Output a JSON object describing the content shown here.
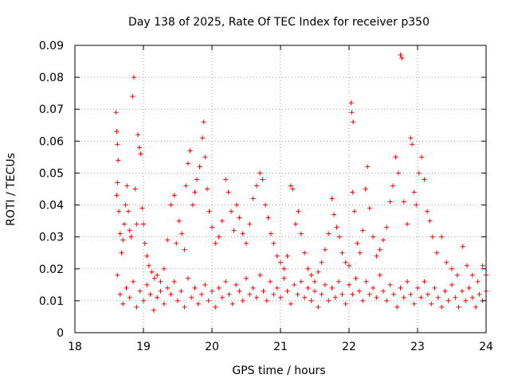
{
  "chart_data": {
    "type": "scatter",
    "title": "Day 138 of 2025, Rate Of TEC Index for receiver p350",
    "xlabel": "GPS time / hours",
    "ylabel": "ROTI / TECUs",
    "xlim": [
      18,
      24
    ],
    "ylim": [
      0,
      0.09
    ],
    "x_ticks": [
      18,
      19,
      20,
      21,
      22,
      23,
      24
    ],
    "x_tick_labels": [
      "18",
      "19",
      "20",
      "21",
      "22",
      "23",
      "24"
    ],
    "y_ticks": [
      0,
      0.01,
      0.02,
      0.03,
      0.04,
      0.05,
      0.06,
      0.07,
      0.08,
      0.09
    ],
    "y_tick_labels": [
      "0",
      "0.01",
      "0.02",
      "0.03",
      "0.04",
      "0.05",
      "0.06",
      "0.07",
      "0.08",
      "0.09"
    ],
    "grid": true,
    "marker": "+",
    "color": "#ff0000",
    "series": [
      {
        "name": "p350",
        "points": [
          [
            18.6,
            0.069
          ],
          [
            18.61,
            0.063
          ],
          [
            18.62,
            0.059
          ],
          [
            18.63,
            0.054
          ],
          [
            18.62,
            0.047
          ],
          [
            18.61,
            0.043
          ],
          [
            18.64,
            0.038
          ],
          [
            18.66,
            0.031
          ],
          [
            18.68,
            0.025
          ],
          [
            18.7,
            0.029
          ],
          [
            18.72,
            0.034
          ],
          [
            18.74,
            0.04
          ],
          [
            18.76,
            0.046
          ],
          [
            18.78,
            0.038
          ],
          [
            18.8,
            0.032
          ],
          [
            18.82,
            0.03
          ],
          [
            18.84,
            0.074
          ],
          [
            18.86,
            0.08
          ],
          [
            18.88,
            0.045
          ],
          [
            18.9,
            0.034
          ],
          [
            18.92,
            0.062
          ],
          [
            18.94,
            0.058
          ],
          [
            18.96,
            0.056
          ],
          [
            18.98,
            0.039
          ],
          [
            19.0,
            0.034
          ],
          [
            19.02,
            0.028
          ],
          [
            19.05,
            0.024
          ],
          [
            19.08,
            0.021
          ],
          [
            19.12,
            0.019
          ],
          [
            19.16,
            0.017
          ],
          [
            19.2,
            0.018
          ],
          [
            19.25,
            0.016
          ],
          [
            19.3,
            0.02
          ],
          [
            19.35,
            0.029
          ],
          [
            19.4,
            0.04
          ],
          [
            19.45,
            0.043
          ],
          [
            19.48,
            0.028
          ],
          [
            19.52,
            0.035
          ],
          [
            19.56,
            0.031
          ],
          [
            19.6,
            0.026
          ],
          [
            19.62,
            0.046
          ],
          [
            19.65,
            0.053
          ],
          [
            19.68,
            0.057
          ],
          [
            19.72,
            0.04
          ],
          [
            19.75,
            0.044
          ],
          [
            19.78,
            0.048
          ],
          [
            19.82,
            0.052
          ],
          [
            19.86,
            0.061
          ],
          [
            19.88,
            0.066
          ],
          [
            19.9,
            0.055
          ],
          [
            19.93,
            0.045
          ],
          [
            19.96,
            0.038
          ],
          [
            20.0,
            0.033
          ],
          [
            20.05,
            0.028
          ],
          [
            20.1,
            0.03
          ],
          [
            20.15,
            0.035
          ],
          [
            20.2,
            0.048
          ],
          [
            20.24,
            0.044
          ],
          [
            20.28,
            0.038
          ],
          [
            20.32,
            0.032
          ],
          [
            20.36,
            0.04
          ],
          [
            20.4,
            0.036
          ],
          [
            20.45,
            0.031
          ],
          [
            20.5,
            0.028
          ],
          [
            20.55,
            0.034
          ],
          [
            20.6,
            0.042
          ],
          [
            20.65,
            0.046
          ],
          [
            20.7,
            0.05
          ],
          [
            20.74,
            0.048
          ],
          [
            20.78,
            0.04
          ],
          [
            20.82,
            0.036
          ],
          [
            20.86,
            0.031
          ],
          [
            20.9,
            0.028
          ],
          [
            20.95,
            0.024
          ],
          [
            21.0,
            0.022
          ],
          [
            21.05,
            0.02
          ],
          [
            21.1,
            0.024
          ],
          [
            21.15,
            0.046
          ],
          [
            21.18,
            0.045
          ],
          [
            21.22,
            0.034
          ],
          [
            21.26,
            0.038
          ],
          [
            21.3,
            0.031
          ],
          [
            21.35,
            0.025
          ],
          [
            21.4,
            0.02
          ],
          [
            21.45,
            0.018
          ],
          [
            21.5,
            0.016
          ],
          [
            21.55,
            0.019
          ],
          [
            21.6,
            0.022
          ],
          [
            21.65,
            0.026
          ],
          [
            21.7,
            0.031
          ],
          [
            21.75,
            0.042
          ],
          [
            21.78,
            0.037
          ],
          [
            21.82,
            0.033
          ],
          [
            21.86,
            0.03
          ],
          [
            21.9,
            0.025
          ],
          [
            21.95,
            0.022
          ],
          [
            22.0,
            0.021
          ],
          [
            22.03,
            0.072
          ],
          [
            22.04,
            0.069
          ],
          [
            22.06,
            0.066
          ],
          [
            22.05,
            0.044
          ],
          [
            22.08,
            0.038
          ],
          [
            22.12,
            0.028
          ],
          [
            22.16,
            0.025
          ],
          [
            22.2,
            0.032
          ],
          [
            22.24,
            0.045
          ],
          [
            22.27,
            0.052
          ],
          [
            22.3,
            0.039
          ],
          [
            22.35,
            0.03
          ],
          [
            22.4,
            0.024
          ],
          [
            22.45,
            0.026
          ],
          [
            22.5,
            0.029
          ],
          [
            22.55,
            0.033
          ],
          [
            22.6,
            0.041
          ],
          [
            22.64,
            0.046
          ],
          [
            22.68,
            0.055
          ],
          [
            22.72,
            0.05
          ],
          [
            22.75,
            0.087
          ],
          [
            22.77,
            0.086
          ],
          [
            22.8,
            0.041
          ],
          [
            22.85,
            0.034
          ],
          [
            22.9,
            0.061
          ],
          [
            22.92,
            0.059
          ],
          [
            22.95,
            0.044
          ],
          [
            22.98,
            0.04
          ],
          [
            23.02,
            0.05
          ],
          [
            23.06,
            0.055
          ],
          [
            23.1,
            0.048
          ],
          [
            23.14,
            0.038
          ],
          [
            23.18,
            0.035
          ],
          [
            23.22,
            0.03
          ],
          [
            23.28,
            0.025
          ],
          [
            23.35,
            0.03
          ],
          [
            23.42,
            0.022
          ],
          [
            23.5,
            0.02
          ],
          [
            23.58,
            0.018
          ],
          [
            23.66,
            0.027
          ],
          [
            23.72,
            0.021
          ],
          [
            23.8,
            0.018
          ],
          [
            23.88,
            0.016
          ],
          [
            23.95,
            0.021
          ],
          [
            24.0,
            0.018
          ],
          [
            18.62,
            0.018
          ],
          [
            18.66,
            0.012
          ],
          [
            18.7,
            0.009
          ],
          [
            18.75,
            0.014
          ],
          [
            18.8,
            0.011
          ],
          [
            18.85,
            0.016
          ],
          [
            18.9,
            0.008
          ],
          [
            18.95,
            0.013
          ],
          [
            19.0,
            0.01
          ],
          [
            19.05,
            0.015
          ],
          [
            19.1,
            0.012
          ],
          [
            19.15,
            0.007
          ],
          [
            19.2,
            0.011
          ],
          [
            19.25,
            0.013
          ],
          [
            19.3,
            0.009
          ],
          [
            19.35,
            0.014
          ],
          [
            19.4,
            0.012
          ],
          [
            19.45,
            0.016
          ],
          [
            19.5,
            0.01
          ],
          [
            19.55,
            0.013
          ],
          [
            19.6,
            0.008
          ],
          [
            19.65,
            0.017
          ],
          [
            19.7,
            0.011
          ],
          [
            19.75,
            0.014
          ],
          [
            19.8,
            0.009
          ],
          [
            19.85,
            0.012
          ],
          [
            19.9,
            0.015
          ],
          [
            19.95,
            0.01
          ],
          [
            20.0,
            0.013
          ],
          [
            20.05,
            0.008
          ],
          [
            20.1,
            0.014
          ],
          [
            20.15,
            0.011
          ],
          [
            20.2,
            0.016
          ],
          [
            20.25,
            0.012
          ],
          [
            20.3,
            0.009
          ],
          [
            20.35,
            0.015
          ],
          [
            20.4,
            0.013
          ],
          [
            20.45,
            0.01
          ],
          [
            20.5,
            0.017
          ],
          [
            20.55,
            0.012
          ],
          [
            20.6,
            0.014
          ],
          [
            20.65,
            0.011
          ],
          [
            20.7,
            0.018
          ],
          [
            20.75,
            0.013
          ],
          [
            20.8,
            0.01
          ],
          [
            20.85,
            0.016
          ],
          [
            20.9,
            0.012
          ],
          [
            20.95,
            0.014
          ],
          [
            21.0,
            0.011
          ],
          [
            21.05,
            0.017
          ],
          [
            21.1,
            0.013
          ],
          [
            21.15,
            0.009
          ],
          [
            21.2,
            0.015
          ],
          [
            21.25,
            0.012
          ],
          [
            21.3,
            0.016
          ],
          [
            21.35,
            0.011
          ],
          [
            21.4,
            0.014
          ],
          [
            21.45,
            0.01
          ],
          [
            21.5,
            0.013
          ],
          [
            21.55,
            0.008
          ],
          [
            21.6,
            0.012
          ],
          [
            21.65,
            0.015
          ],
          [
            21.7,
            0.01
          ],
          [
            21.75,
            0.014
          ],
          [
            21.8,
            0.011
          ],
          [
            21.85,
            0.016
          ],
          [
            21.9,
            0.012
          ],
          [
            21.95,
            0.009
          ],
          [
            22.0,
            0.015
          ],
          [
            22.05,
            0.012
          ],
          [
            22.1,
            0.017
          ],
          [
            22.15,
            0.013
          ],
          [
            22.2,
            0.01
          ],
          [
            22.25,
            0.016
          ],
          [
            22.3,
            0.012
          ],
          [
            22.35,
            0.014
          ],
          [
            22.4,
            0.011
          ],
          [
            22.45,
            0.018
          ],
          [
            22.5,
            0.013
          ],
          [
            22.55,
            0.01
          ],
          [
            22.6,
            0.015
          ],
          [
            22.65,
            0.012
          ],
          [
            22.7,
            0.008
          ],
          [
            22.75,
            0.014
          ],
          [
            22.8,
            0.011
          ],
          [
            22.85,
            0.016
          ],
          [
            22.9,
            0.012
          ],
          [
            22.95,
            0.009
          ],
          [
            23.0,
            0.014
          ],
          [
            23.05,
            0.011
          ],
          [
            23.1,
            0.016
          ],
          [
            23.15,
            0.012
          ],
          [
            23.2,
            0.009
          ],
          [
            23.25,
            0.014
          ],
          [
            23.3,
            0.011
          ],
          [
            23.35,
            0.008
          ],
          [
            23.4,
            0.013
          ],
          [
            23.45,
            0.01
          ],
          [
            23.5,
            0.015
          ],
          [
            23.55,
            0.011
          ],
          [
            23.6,
            0.008
          ],
          [
            23.65,
            0.013
          ],
          [
            23.7,
            0.01
          ],
          [
            23.75,
            0.014
          ],
          [
            23.8,
            0.011
          ],
          [
            23.85,
            0.008
          ],
          [
            23.9,
            0.012
          ],
          [
            23.95,
            0.01
          ],
          [
            24.0,
            0.013
          ]
        ]
      }
    ]
  }
}
